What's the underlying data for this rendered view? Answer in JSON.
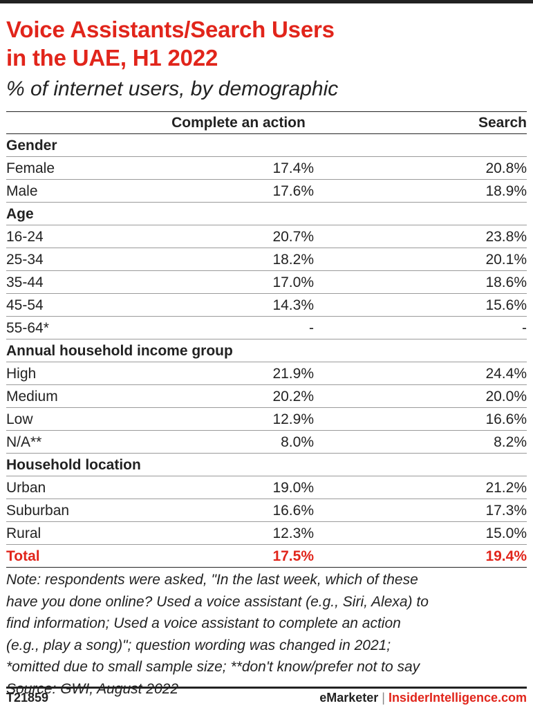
{
  "title_line1": "Voice Assistants/Search Users",
  "title_line2": "in the UAE, H1 2022",
  "subtitle": "% of internet users, by demographic",
  "columns": [
    "",
    "Complete an action",
    "Search"
  ],
  "chart_data": {
    "type": "table",
    "title": "Voice Assistants/Search Users in the UAE, H1 2022",
    "subtitle": "% of internet users, by demographic",
    "columns": [
      "Complete an action",
      "Search"
    ],
    "groups": [
      {
        "name": "Gender",
        "rows": [
          {
            "label": "Female",
            "values": [
              "17.4%",
              "20.8%"
            ]
          },
          {
            "label": "Male",
            "values": [
              "17.6%",
              "18.9%"
            ]
          }
        ]
      },
      {
        "name": "Age",
        "rows": [
          {
            "label": "16-24",
            "values": [
              "20.7%",
              "23.8%"
            ]
          },
          {
            "label": "25-34",
            "values": [
              "18.2%",
              "20.1%"
            ]
          },
          {
            "label": "35-44",
            "values": [
              "17.0%",
              "18.6%"
            ]
          },
          {
            "label": "45-54",
            "values": [
              "14.3%",
              "15.6%"
            ]
          },
          {
            "label": "55-64*",
            "values": [
              "-",
              "-"
            ]
          }
        ]
      },
      {
        "name": "Annual household income group",
        "rows": [
          {
            "label": "High",
            "values": [
              "21.9%",
              "24.4%"
            ]
          },
          {
            "label": "Medium",
            "values": [
              "20.2%",
              "20.0%"
            ]
          },
          {
            "label": "Low",
            "values": [
              "12.9%",
              "16.6%"
            ]
          },
          {
            "label": "N/A**",
            "values": [
              "8.0%",
              "8.2%"
            ]
          }
        ]
      },
      {
        "name": "Household location",
        "rows": [
          {
            "label": "Urban",
            "values": [
              "19.0%",
              "21.2%"
            ]
          },
          {
            "label": "Suburban",
            "values": [
              "16.6%",
              "17.3%"
            ]
          },
          {
            "label": "Rural",
            "values": [
              "12.3%",
              "15.0%"
            ]
          }
        ]
      }
    ],
    "total": {
      "label": "Total",
      "values": [
        "17.5%",
        "19.4%"
      ]
    }
  },
  "note": "Note: respondents were asked, \"In the last week, which of these\nhave you done online? Used a voice assistant (e.g., Siri, Alexa) to\nfind information; Used a voice assistant to complete an action\n(e.g., play a song)\"; question wording was changed in 2021;\n*omitted due to small sample size; **don't know/prefer not to say\nSource: GWI, August 2022",
  "footer": {
    "chart_id": "T21859",
    "brand_left": "eMarketer",
    "brand_sep": "|",
    "brand_right": "InsiderIntelligence.com"
  },
  "colors": {
    "accent": "#e1251b",
    "text": "#222222",
    "rule": "#9a9a9a"
  }
}
